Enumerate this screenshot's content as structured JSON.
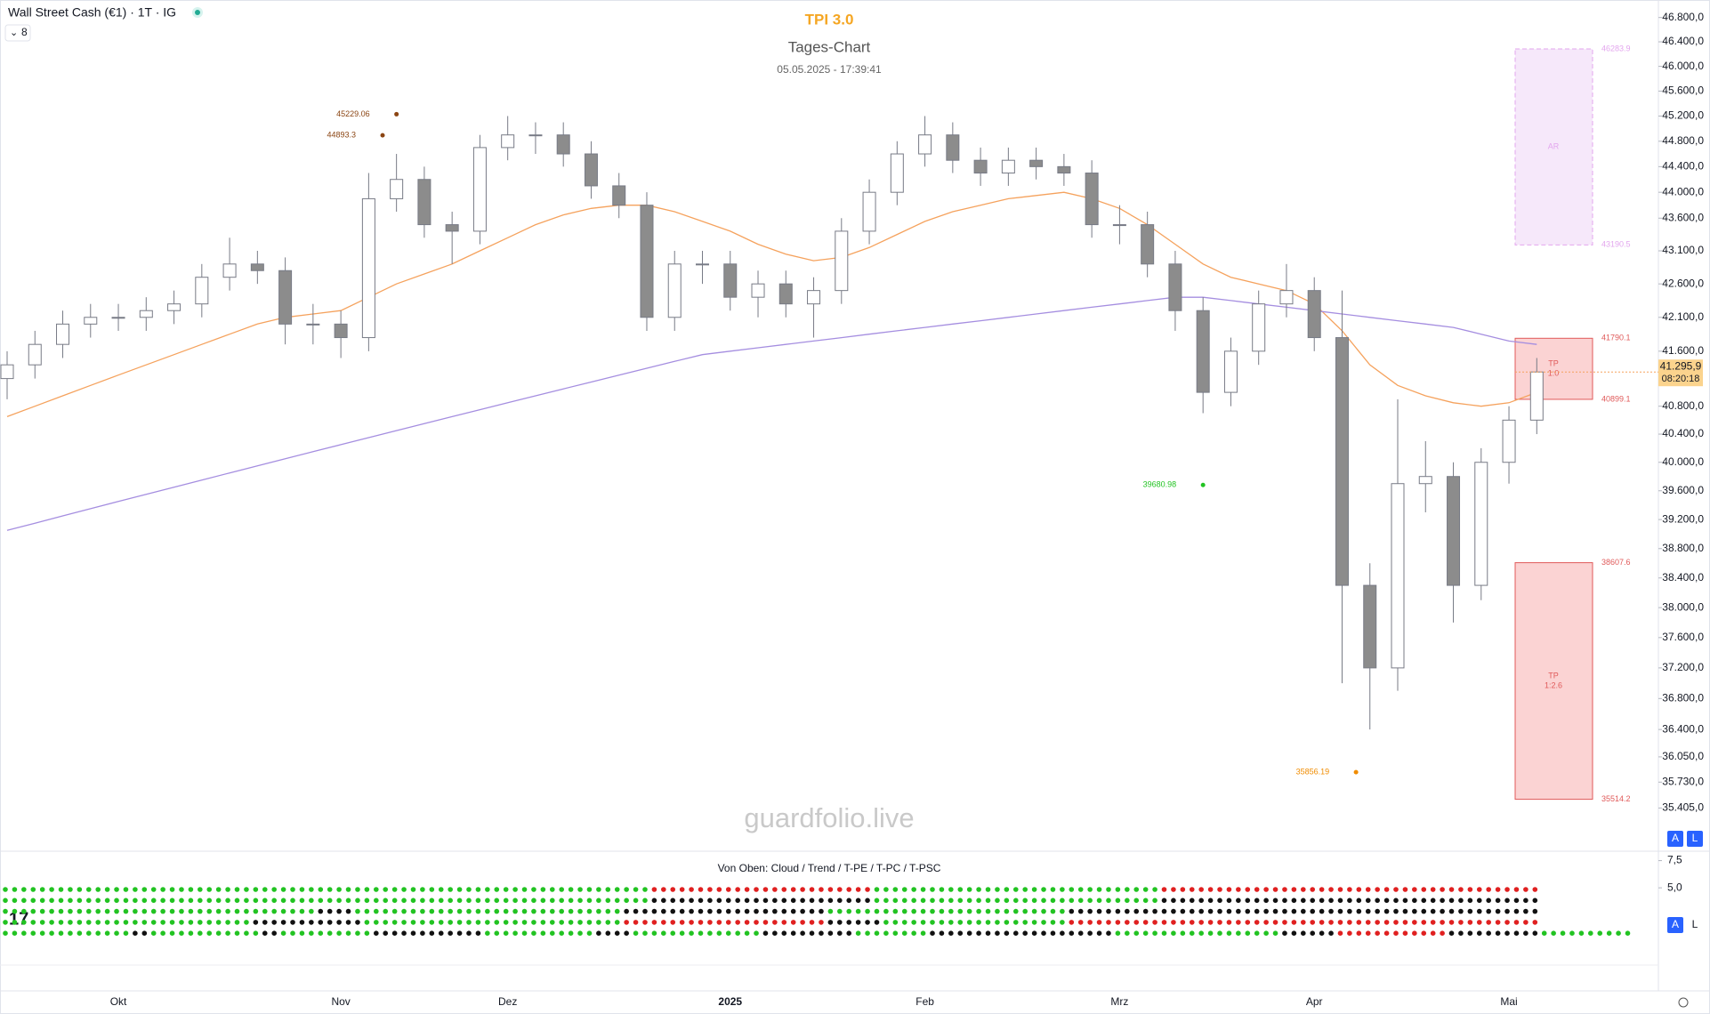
{
  "chart_data": {
    "type": "candlestick",
    "symbol": "Wall Street Cash (€1) · 1T · IG",
    "indicator_count": "8",
    "title": "TPI 3.0",
    "subtitle": "Tages-Chart",
    "timestamp": "05.05.2025 - 17:39:41",
    "watermark": "guardfolio.live",
    "categories": [
      null,
      null,
      null,
      null,
      "Okt",
      null,
      null,
      null,
      null,
      null,
      null,
      null,
      "Nov",
      null,
      null,
      null,
      null,
      null,
      "Dez",
      null,
      null,
      null,
      null,
      null,
      null,
      null,
      "2025",
      null,
      null,
      null,
      null,
      null,
      null,
      "Feb",
      null,
      null,
      null,
      null,
      null,
      null,
      "Mrz",
      null,
      null,
      null,
      null,
      null,
      null,
      "Apr",
      null,
      null,
      null,
      null,
      null,
      null,
      "Mai",
      null
    ],
    "open": [
      41200,
      41400,
      41700,
      42000,
      42100,
      42100,
      42200,
      42300,
      42700,
      42900,
      42800,
      42000,
      42000,
      41800,
      43900,
      44200,
      43500,
      43400,
      44700,
      44900,
      44900,
      44600,
      44100,
      43800,
      42100,
      42900,
      42900,
      42400,
      42600,
      42300,
      42500,
      43400,
      44000,
      44600,
      44900,
      44500,
      44300,
      44500,
      44400,
      44300,
      43500,
      43500,
      42900,
      42200,
      41000,
      41600,
      42300,
      42500,
      41800,
      38300,
      37200,
      39700,
      39800,
      38300,
      40000,
      40600
    ],
    "high": [
      41600,
      41900,
      42200,
      42300,
      42300,
      42400,
      42500,
      42900,
      43300,
      43100,
      43000,
      42300,
      42200,
      44300,
      44600,
      44400,
      43700,
      44900,
      45200,
      45100,
      45100,
      44800,
      44300,
      44000,
      43100,
      43100,
      43100,
      42800,
      42800,
      42700,
      43600,
      44200,
      44800,
      45200,
      45100,
      44700,
      44700,
      44700,
      44600,
      44500,
      43800,
      43700,
      43100,
      42400,
      41800,
      42500,
      42900,
      42700,
      42500,
      38600,
      40900,
      40300,
      40000,
      40200,
      40800,
      41500
    ],
    "low": [
      40900,
      41200,
      41500,
      41800,
      41900,
      41900,
      42000,
      42100,
      42500,
      42600,
      41700,
      41700,
      41500,
      41600,
      43700,
      43300,
      42900,
      43200,
      44500,
      44600,
      44400,
      43900,
      43600,
      41900,
      41900,
      42600,
      42200,
      42100,
      42100,
      41800,
      42300,
      43200,
      43800,
      44400,
      44300,
      44100,
      44100,
      44200,
      44100,
      43300,
      43200,
      42700,
      41900,
      40700,
      40800,
      41400,
      42100,
      41600,
      37000,
      36400,
      36900,
      39300,
      37800,
      38100,
      39700,
      40400
    ],
    "close": [
      41400,
      41700,
      42000,
      42100,
      42100,
      42200,
      42300,
      42700,
      42900,
      42800,
      42000,
      42000,
      41800,
      43900,
      44200,
      43500,
      43400,
      44700,
      44900,
      44900,
      44600,
      44100,
      43800,
      42100,
      42900,
      42900,
      42400,
      42600,
      42300,
      42500,
      43400,
      44000,
      44600,
      44900,
      44500,
      44300,
      44500,
      44400,
      44300,
      43500,
      43500,
      42900,
      42200,
      41000,
      41600,
      42300,
      42500,
      41800,
      38300,
      37200,
      39700,
      39800,
      38300,
      40000,
      40600,
      41295.9
    ],
    "up_color": "#ffffff",
    "down_color": "#8c8c8c",
    "wick_color": "#787b86",
    "log_scale": true,
    "ylim": [
      34880,
      47090
    ],
    "yticks": [
      {
        "value": 46800,
        "label": "46.800,0"
      },
      {
        "value": 46400,
        "label": "46.400,0"
      },
      {
        "value": 46000,
        "label": "46.000,0"
      },
      {
        "value": 45600,
        "label": "45.600,0"
      },
      {
        "value": 45200,
        "label": "45.200,0"
      },
      {
        "value": 44800,
        "label": "44.800,0"
      },
      {
        "value": 44400,
        "label": "44.400,0"
      },
      {
        "value": 44000,
        "label": "44.000,0"
      },
      {
        "value": 43600,
        "label": "43.600,0"
      },
      {
        "value": 43100,
        "label": "43.100,0"
      },
      {
        "value": 42600,
        "label": "42.600,0"
      },
      {
        "value": 42100,
        "label": "42.100,0"
      },
      {
        "value": 41600,
        "label": "41.600,0"
      },
      {
        "value": 40800,
        "label": "40.800,0"
      },
      {
        "value": 40400,
        "label": "40.400,0"
      },
      {
        "value": 40000,
        "label": "40.000,0"
      },
      {
        "value": 39600,
        "label": "39.600,0"
      },
      {
        "value": 39200,
        "label": "39.200,0"
      },
      {
        "value": 38800,
        "label": "38.800,0"
      },
      {
        "value": 38400,
        "label": "38.400,0"
      },
      {
        "value": 38000,
        "label": "38.000,0"
      },
      {
        "value": 37600,
        "label": "37.600,0"
      },
      {
        "value": 37200,
        "label": "37.200,0"
      },
      {
        "value": 36800,
        "label": "36.800,0"
      },
      {
        "value": 36400,
        "label": "36.400,0"
      },
      {
        "value": 36050,
        "label": "36.050,0"
      },
      {
        "value": 35730,
        "label": "35.730,0"
      },
      {
        "value": 35405,
        "label": "35.405,0"
      }
    ],
    "overlays": [
      {
        "color": "#f5a25d",
        "values": [
          40650,
          40800,
          40950,
          41100,
          41250,
          41400,
          41550,
          41700,
          41850,
          42000,
          42100,
          42150,
          42200,
          42400,
          42600,
          42750,
          42900,
          43100,
          43300,
          43500,
          43650,
          43750,
          43800,
          43800,
          43700,
          43550,
          43400,
          43200,
          43050,
          42950,
          43000,
          43150,
          43350,
          43550,
          43700,
          43800,
          43900,
          43950,
          44000,
          43900,
          43750,
          43500,
          43200,
          42900,
          42700,
          42600,
          42500,
          42300,
          41900,
          41400,
          41100,
          40950,
          40850,
          40800,
          40850,
          41000
        ]
      },
      {
        "color": "#a58ee0",
        "values": [
          39050,
          39150,
          39250,
          39350,
          39450,
          39550,
          39650,
          39750,
          39850,
          39950,
          40050,
          40150,
          40250,
          40350,
          40450,
          40550,
          40650,
          40750,
          40850,
          40950,
          41050,
          41150,
          41250,
          41350,
          41450,
          41550,
          41600,
          41650,
          41700,
          41750,
          41800,
          41850,
          41900,
          41950,
          42000,
          42050,
          42100,
          42150,
          42200,
          42250,
          42300,
          42350,
          42400,
          42400,
          42350,
          42300,
          42250,
          42200,
          42150,
          42100,
          42050,
          42000,
          41950,
          41850,
          41750,
          41700
        ]
      }
    ],
    "last_price": {
      "value": 41295.9,
      "label": "41.295,9"
    },
    "countdown": "08:20:18",
    "zones": [
      {
        "from": 46283.9,
        "to": 43190.5,
        "fill": "#f6e8fa",
        "border": "#e3a6ee",
        "label": [
          "AR"
        ]
      },
      {
        "from": 41790.1,
        "to": 40899.1,
        "fill": "#fbd3d3",
        "border": "#e05a5a",
        "label": [
          "TP",
          "1:0"
        ]
      },
      {
        "from": 38607.6,
        "to": 35514.2,
        "fill": "#fbd3d3",
        "border": "#e05a5a",
        "label": [
          "TP",
          "1:2.6"
        ]
      }
    ],
    "annotations": [
      {
        "x": 14,
        "value": 45229.06,
        "color": "#8b4513"
      },
      {
        "x": 13.5,
        "value": 44893.3,
        "color": "#8b4513"
      },
      {
        "x": 43,
        "value": 39680.98,
        "color": "#22c322"
      },
      {
        "x": 48.5,
        "value": 35856.19,
        "color": "#f08c00"
      }
    ],
    "buttons": [
      "A",
      "L"
    ],
    "indicator": {
      "title": "Von Oben: Cloud / Trend / T-PE / T-PC / T-PSC",
      "ylim": [
        -2.1,
        8.2
      ],
      "yticks": [
        {
          "value": 7.5,
          "label": "7,5"
        },
        {
          "value": 5,
          "label": "5,0"
        }
      ],
      "palette": {
        "g": "#22c322",
        "r": "#e02020",
        "k": "#111111"
      },
      "rows": [
        [
          {
            "c": "g",
            "n": 70
          },
          {
            "c": "r",
            "n": 24
          },
          {
            "c": "g",
            "n": 31
          },
          {
            "c": "r",
            "n": 41
          }
        ],
        [
          {
            "c": "g",
            "n": 70
          },
          {
            "c": "k",
            "n": 24
          },
          {
            "c": "g",
            "n": 31
          },
          {
            "c": "k",
            "n": 41
          }
        ],
        [
          {
            "c": "g",
            "n": 34
          },
          {
            "c": "k",
            "n": 4
          },
          {
            "c": "g",
            "n": 29
          },
          {
            "c": "k",
            "n": 22
          },
          {
            "c": "g",
            "n": 26
          },
          {
            "c": "k",
            "n": 51
          }
        ],
        [
          {
            "c": "g",
            "n": 27
          },
          {
            "c": "k",
            "n": 12
          },
          {
            "c": "g",
            "n": 28
          },
          {
            "c": "r",
            "n": 22
          },
          {
            "c": "k",
            "n": 6
          },
          {
            "c": "g",
            "n": 20
          },
          {
            "c": "r",
            "n": 51
          }
        ],
        [
          {
            "c": "g",
            "n": 14
          },
          {
            "c": "k",
            "n": 2
          },
          {
            "c": "g",
            "n": 12
          },
          {
            "c": "k",
            "n": 2
          },
          {
            "c": "g",
            "n": 10
          },
          {
            "c": "k",
            "n": 12
          },
          {
            "c": "g",
            "n": 12
          },
          {
            "c": "k",
            "n": 4
          },
          {
            "c": "g",
            "n": 14
          },
          {
            "c": "k",
            "n": 10
          },
          {
            "c": "g",
            "n": 8
          },
          {
            "c": "k",
            "n": 20
          },
          {
            "c": "g",
            "n": 18
          },
          {
            "c": "k",
            "n": 6
          },
          {
            "c": "r",
            "n": 12
          },
          {
            "c": "k",
            "n": 10
          },
          {
            "c": "g",
            "n": 10
          }
        ]
      ]
    }
  }
}
